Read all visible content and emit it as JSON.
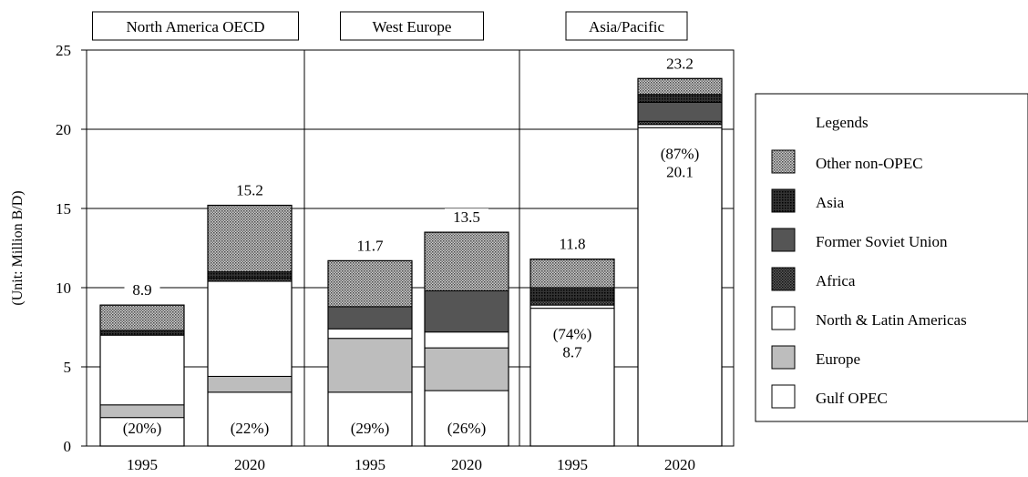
{
  "chart_data": {
    "type": "bar",
    "stacked": true,
    "ylabel": "(Unit: Million B/D)",
    "ylim": [
      0,
      25
    ],
    "yticks": [
      "0",
      "5",
      "10",
      "15",
      "20",
      "25"
    ],
    "grid": "horizontal",
    "legend_title": "Legends",
    "legend_position": "right",
    "series": [
      {
        "name": "Gulf OPEC",
        "color": "#ffffff",
        "pattern": "none"
      },
      {
        "name": "Europe",
        "color": "#bdbdbd",
        "pattern": "none"
      },
      {
        "name": "North & Latin Americas",
        "color": "#ffffff",
        "pattern": "none"
      },
      {
        "name": "Africa",
        "color": "#3a3a3a",
        "pattern": "dots"
      },
      {
        "name": "Former Soviet Union",
        "color": "#555555",
        "pattern": "none"
      },
      {
        "name": "Asia",
        "color": "#1a1a1a",
        "pattern": "dots"
      },
      {
        "name": "Other non-OPEC",
        "color": "#9a9a9a",
        "pattern": "dots"
      }
    ],
    "panels": [
      {
        "title": "North America OECD",
        "bars": [
          {
            "category": "1995",
            "total": 8.9,
            "total_label": "8.9",
            "share_label": "(20%)",
            "segments": [
              1.8,
              0.8,
              4.4,
              0.0,
              0.0,
              0.3,
              1.6
            ]
          },
          {
            "category": "2020",
            "total": 15.2,
            "total_label": "15.2",
            "share_label": "(22%)",
            "segments": [
              3.4,
              1.0,
              6.0,
              0.2,
              0.0,
              0.4,
              4.2
            ]
          }
        ]
      },
      {
        "title": "West Europe",
        "bars": [
          {
            "category": "1995",
            "total": 11.7,
            "total_label": "11.7",
            "share_label": "(29%)",
            "segments": [
              3.4,
              3.4,
              0.6,
              0.0,
              1.4,
              0.0,
              2.9
            ]
          },
          {
            "category": "2020",
            "total": 13.5,
            "total_label": "13.5",
            "share_label": "(26%)",
            "segments": [
              3.5,
              2.7,
              1.0,
              0.0,
              2.6,
              0.0,
              3.7
            ]
          }
        ]
      },
      {
        "title": "Asia/Pacific",
        "bars": [
          {
            "category": "1995",
            "total": 11.8,
            "total_label": "11.8",
            "share_label": "(74%)",
            "value_label": "8.7",
            "segments": [
              8.7,
              0.0,
              0.2,
              0.3,
              0.0,
              0.8,
              1.8
            ]
          },
          {
            "category": "2020",
            "total": 23.2,
            "total_label": "23.2",
            "share_label": "(87%)",
            "value_label": "20.1",
            "segments": [
              20.1,
              0.0,
              0.2,
              0.2,
              1.2,
              0.5,
              1.0
            ]
          }
        ]
      }
    ]
  }
}
